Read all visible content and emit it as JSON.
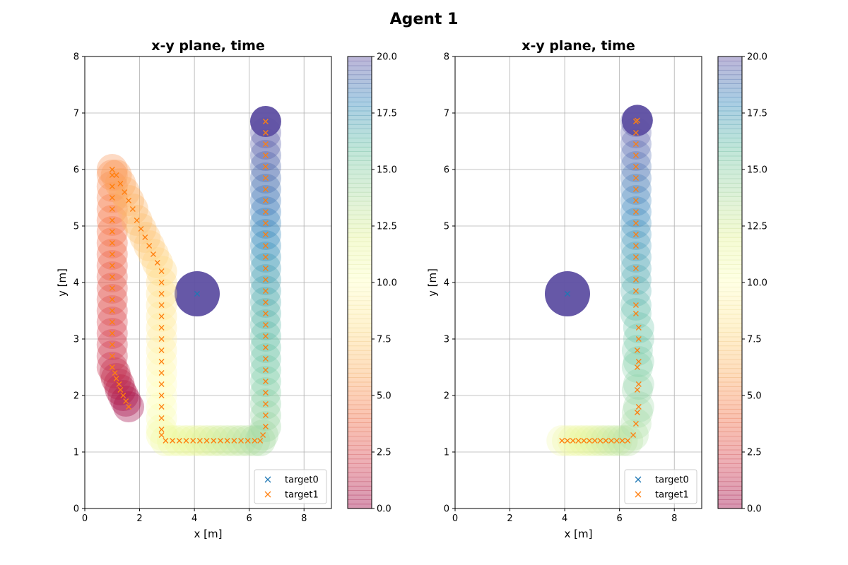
{
  "figure": {
    "suptitle": "Agent 1"
  },
  "chart_data": [
    {
      "type": "scatter",
      "title": "x-y plane, time",
      "xlabel": "x [m]",
      "ylabel": "y [m]",
      "xlim": [
        0,
        9
      ],
      "ylim": [
        0,
        8
      ],
      "xticks": [
        "0",
        "2",
        "4",
        "6",
        "8"
      ],
      "yticks": [
        "0",
        "1",
        "2",
        "3",
        "4",
        "5",
        "6",
        "7",
        "8"
      ],
      "grid": true,
      "legend": {
        "placement": "lower right",
        "entries": [
          "target0",
          "target1"
        ]
      },
      "colorbar": {
        "range": [
          0,
          20
        ],
        "ticks": [
          "0.0",
          "2.5",
          "5.0",
          "7.5",
          "10.0",
          "12.5",
          "15.0",
          "17.5",
          "20.0"
        ],
        "colormap": "Spectral"
      },
      "series": [
        {
          "name": "target0",
          "color": "#1f77b4",
          "points": [
            [
              4.1,
              3.8
            ]
          ]
        },
        {
          "name": "target1",
          "color": "#ff7f0e",
          "points": [
            [
              1.6,
              1.8
            ],
            [
              1.5,
              1.9
            ],
            [
              1.4,
              2.0
            ],
            [
              1.3,
              2.1
            ],
            [
              1.25,
              2.2
            ],
            [
              1.15,
              2.3
            ],
            [
              1.1,
              2.4
            ],
            [
              1.0,
              2.5
            ],
            [
              1.0,
              2.7
            ],
            [
              1.0,
              2.9
            ],
            [
              1.0,
              3.1
            ],
            [
              1.0,
              3.3
            ],
            [
              1.0,
              3.5
            ],
            [
              1.0,
              3.7
            ],
            [
              1.0,
              3.9
            ],
            [
              1.0,
              4.1
            ],
            [
              1.0,
              4.3
            ],
            [
              1.0,
              4.5
            ],
            [
              1.0,
              4.7
            ],
            [
              1.0,
              4.9
            ],
            [
              1.0,
              5.1
            ],
            [
              1.0,
              5.3
            ],
            [
              1.0,
              5.5
            ],
            [
              1.0,
              5.7
            ],
            [
              1.0,
              5.9
            ],
            [
              1.0,
              6.0
            ],
            [
              1.15,
              5.9
            ],
            [
              1.3,
              5.75
            ],
            [
              1.45,
              5.6
            ],
            [
              1.6,
              5.45
            ],
            [
              1.75,
              5.3
            ],
            [
              1.9,
              5.1
            ],
            [
              2.05,
              4.95
            ],
            [
              2.2,
              4.8
            ],
            [
              2.35,
              4.65
            ],
            [
              2.5,
              4.5
            ],
            [
              2.65,
              4.35
            ],
            [
              2.8,
              4.2
            ],
            [
              2.8,
              4.0
            ],
            [
              2.8,
              3.8
            ],
            [
              2.8,
              3.6
            ],
            [
              2.8,
              3.4
            ],
            [
              2.8,
              3.2
            ],
            [
              2.8,
              3.0
            ],
            [
              2.8,
              2.8
            ],
            [
              2.8,
              2.6
            ],
            [
              2.8,
              2.4
            ],
            [
              2.8,
              2.2
            ],
            [
              2.8,
              2.0
            ],
            [
              2.8,
              1.8
            ],
            [
              2.8,
              1.6
            ],
            [
              2.8,
              1.4
            ],
            [
              2.8,
              1.3
            ],
            [
              2.95,
              1.2
            ],
            [
              3.2,
              1.2
            ],
            [
              3.45,
              1.2
            ],
            [
              3.7,
              1.2
            ],
            [
              3.95,
              1.2
            ],
            [
              4.2,
              1.2
            ],
            [
              4.45,
              1.2
            ],
            [
              4.7,
              1.2
            ],
            [
              4.95,
              1.2
            ],
            [
              5.2,
              1.2
            ],
            [
              5.45,
              1.2
            ],
            [
              5.7,
              1.2
            ],
            [
              5.95,
              1.2
            ],
            [
              6.2,
              1.2
            ],
            [
              6.4,
              1.2
            ],
            [
              6.5,
              1.3
            ],
            [
              6.6,
              1.45
            ],
            [
              6.6,
              1.65
            ],
            [
              6.6,
              1.85
            ],
            [
              6.6,
              2.05
            ],
            [
              6.6,
              2.25
            ],
            [
              6.6,
              2.45
            ],
            [
              6.6,
              2.65
            ],
            [
              6.6,
              2.85
            ],
            [
              6.6,
              3.05
            ],
            [
              6.6,
              3.25
            ],
            [
              6.6,
              3.45
            ],
            [
              6.6,
              3.65
            ],
            [
              6.6,
              3.85
            ],
            [
              6.6,
              4.05
            ],
            [
              6.6,
              4.25
            ],
            [
              6.6,
              4.45
            ],
            [
              6.6,
              4.65
            ],
            [
              6.6,
              4.85
            ],
            [
              6.6,
              5.05
            ],
            [
              6.6,
              5.25
            ],
            [
              6.6,
              5.45
            ],
            [
              6.6,
              5.65
            ],
            [
              6.6,
              5.85
            ],
            [
              6.6,
              6.05
            ],
            [
              6.6,
              6.25
            ],
            [
              6.6,
              6.45
            ],
            [
              6.6,
              6.65
            ],
            [
              6.6,
              6.85
            ]
          ]
        }
      ]
    },
    {
      "type": "scatter",
      "title": "x-y plane, time",
      "xlabel": "x [m]",
      "ylabel": "y [m]",
      "xlim": [
        0,
        9
      ],
      "ylim": [
        0,
        8
      ],
      "xticks": [
        "0",
        "2",
        "4",
        "6",
        "8"
      ],
      "yticks": [
        "0",
        "1",
        "2",
        "3",
        "4",
        "5",
        "6",
        "7",
        "8"
      ],
      "grid": true,
      "legend": {
        "placement": "lower right",
        "entries": [
          "target0",
          "target1"
        ]
      },
      "colorbar": {
        "range": [
          0,
          20
        ],
        "ticks": [
          "0.0",
          "2.5",
          "5.0",
          "7.5",
          "10.0",
          "12.5",
          "15.0",
          "17.5",
          "20.0"
        ],
        "colormap": "Spectral"
      },
      "series": [
        {
          "name": "target0",
          "color": "#1f77b4",
          "points": [
            [
              4.1,
              3.8
            ]
          ]
        },
        {
          "name": "target1",
          "color": "#ff7f0e",
          "points": [
            [
              3.9,
              1.2
            ],
            [
              4.1,
              1.2
            ],
            [
              4.3,
              1.2
            ],
            [
              4.5,
              1.2
            ],
            [
              4.7,
              1.2
            ],
            [
              4.9,
              1.2
            ],
            [
              5.1,
              1.2
            ],
            [
              5.3,
              1.2
            ],
            [
              5.5,
              1.2
            ],
            [
              5.7,
              1.2
            ],
            [
              5.9,
              1.2
            ],
            [
              6.1,
              1.2
            ],
            [
              6.3,
              1.2
            ],
            [
              6.5,
              1.3
            ],
            [
              6.6,
              1.5
            ],
            [
              6.65,
              1.7
            ],
            [
              6.7,
              1.8
            ],
            [
              6.65,
              2.1
            ],
            [
              6.7,
              2.2
            ],
            [
              6.65,
              2.5
            ],
            [
              6.7,
              2.6
            ],
            [
              6.65,
              2.8
            ],
            [
              6.7,
              3.0
            ],
            [
              6.7,
              3.2
            ],
            [
              6.6,
              3.45
            ],
            [
              6.6,
              3.6
            ],
            [
              6.6,
              3.85
            ],
            [
              6.6,
              4.05
            ],
            [
              6.6,
              4.25
            ],
            [
              6.6,
              4.45
            ],
            [
              6.6,
              4.65
            ],
            [
              6.6,
              4.85
            ],
            [
              6.6,
              5.05
            ],
            [
              6.6,
              5.25
            ],
            [
              6.6,
              5.45
            ],
            [
              6.6,
              5.65
            ],
            [
              6.6,
              5.85
            ],
            [
              6.6,
              6.05
            ],
            [
              6.6,
              6.25
            ],
            [
              6.6,
              6.45
            ],
            [
              6.6,
              6.65
            ],
            [
              6.6,
              6.85
            ],
            [
              6.65,
              6.87
            ]
          ]
        }
      ]
    }
  ]
}
